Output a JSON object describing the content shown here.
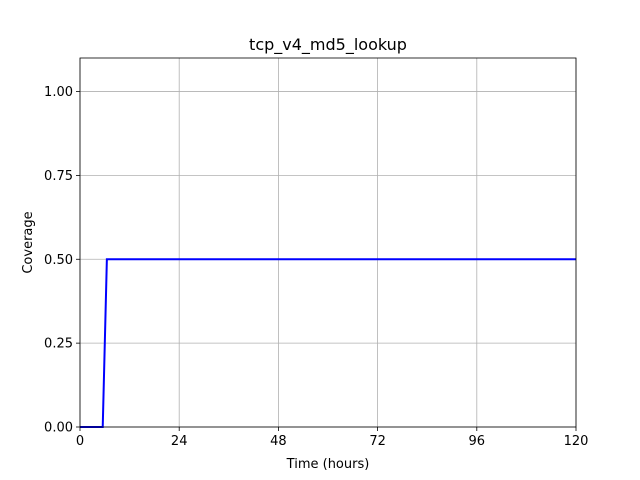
{
  "chart_data": {
    "type": "line",
    "title": "tcp_v4_md5_lookup",
    "xlabel": "Time (hours)",
    "ylabel": "Coverage",
    "xlim": [
      0,
      120
    ],
    "ylim": [
      0,
      1.1
    ],
    "xticks": [
      0,
      24,
      48,
      72,
      96,
      120
    ],
    "xtick_labels": [
      "0",
      "24",
      "48",
      "72",
      "96",
      "120"
    ],
    "yticks": [
      0.0,
      0.25,
      0.5,
      0.75,
      1.0
    ],
    "ytick_labels": [
      "0.00",
      "0.25",
      "0.50",
      "0.75",
      "1.00"
    ],
    "grid": true,
    "series": [
      {
        "color": "#0000ff",
        "x": [
          0,
          5.5,
          6.5,
          120
        ],
        "y": [
          0,
          0,
          0.5,
          0.5
        ]
      }
    ]
  }
}
